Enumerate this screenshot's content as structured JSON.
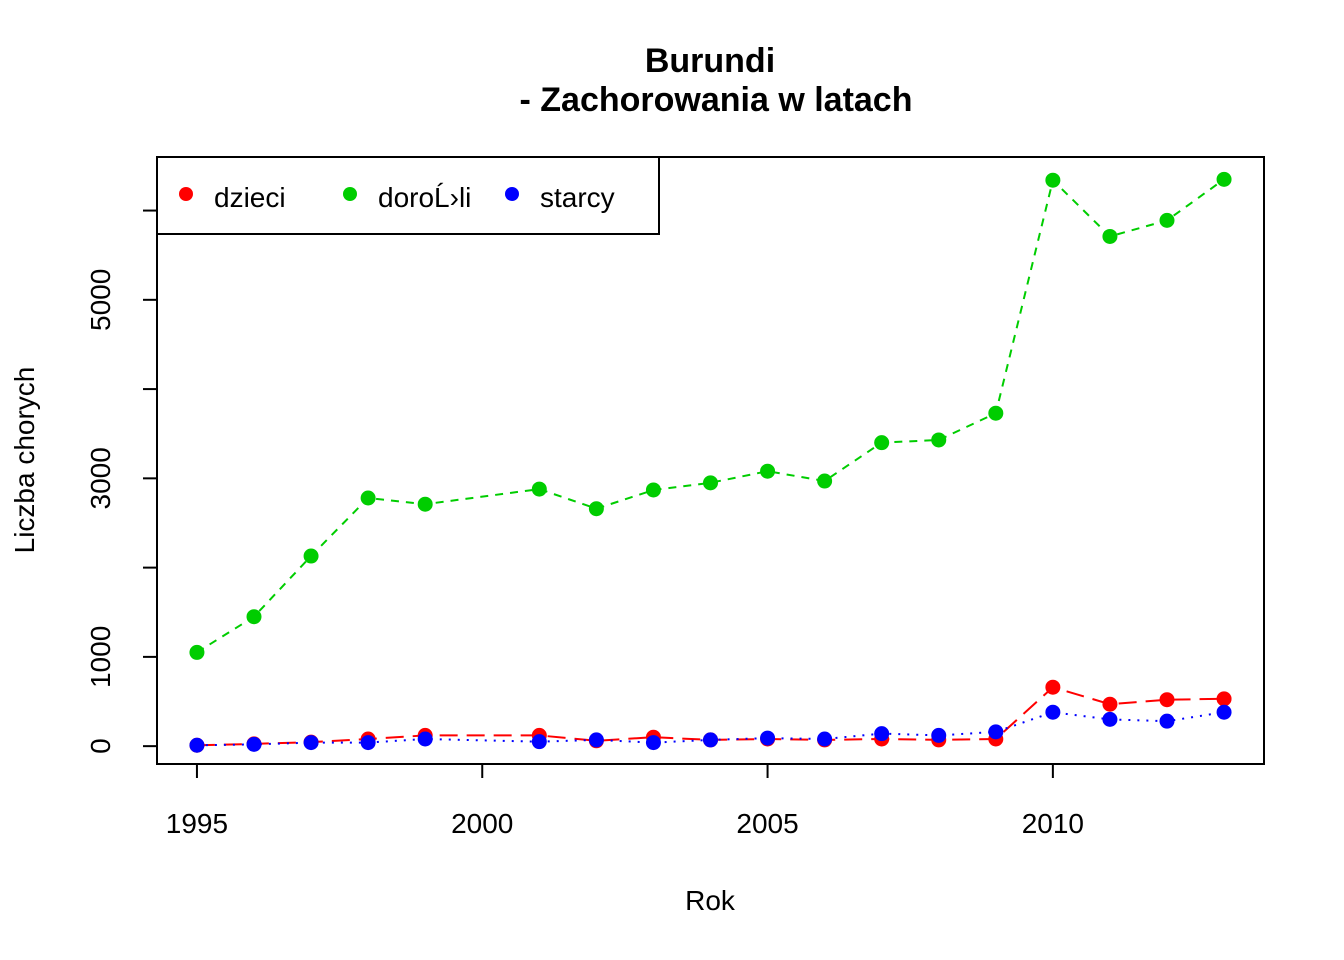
{
  "chart_data": {
    "type": "line",
    "title": "Burundi",
    "subtitle": "- Zachorowania w latach",
    "xlabel": "Rok",
    "ylabel": "Liczba chorych",
    "xlim": [
      1994.3,
      2013.7
    ],
    "ylim": [
      -200,
      6600
    ],
    "x_ticks": [
      "1995",
      "2000",
      "2005",
      "2010"
    ],
    "y_ticks": [
      "0",
      "1000",
      "3000",
      "5000"
    ],
    "y_minor_ticks": [
      2000,
      4000,
      6000
    ],
    "grid": false,
    "legend_position": "top-left",
    "x": [
      1995,
      1996,
      1997,
      1998,
      1999,
      2001,
      2002,
      2003,
      2004,
      2005,
      2006,
      2007,
      2008,
      2009,
      2010,
      2011,
      2012,
      2013
    ],
    "series": [
      {
        "name": "dzieci",
        "color": "#ff0000",
        "line_style": "long-dash",
        "values": [
          10,
          25,
          45,
          80,
          120,
          120,
          60,
          100,
          70,
          80,
          70,
          80,
          70,
          80,
          660,
          470,
          520,
          530
        ]
      },
      {
        "name": "doroĹ›li",
        "color": "#00cd00",
        "line_style": "dashed",
        "values": [
          1050,
          1450,
          2130,
          2780,
          2710,
          2880,
          2660,
          2870,
          2950,
          3080,
          2970,
          3400,
          3430,
          3730,
          6340,
          5710,
          5890,
          6350
        ]
      },
      {
        "name": "starcy",
        "color": "#0000ff",
        "line_style": "dotted",
        "values": [
          10,
          20,
          40,
          40,
          80,
          50,
          70,
          40,
          70,
          90,
          80,
          140,
          120,
          160,
          380,
          300,
          280,
          380
        ]
      }
    ]
  }
}
